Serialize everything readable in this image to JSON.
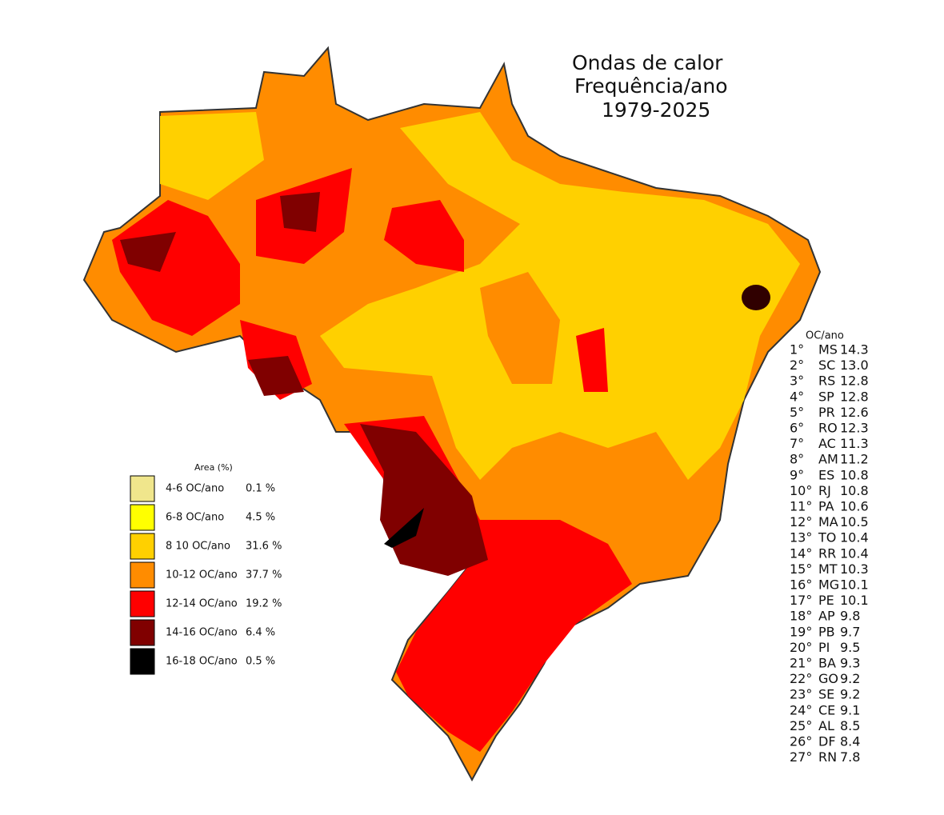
{
  "title": [
    "Ondas de calor",
    "Frequência/ano",
    "1979-2025"
  ],
  "legend": {
    "header": "Area (%)",
    "items": [
      {
        "range": "4-6 OC/ano",
        "area": "0.1 %",
        "color": "#f0e68c"
      },
      {
        "range": "6-8 OC/ano",
        "area": "4.5 %",
        "color": "#ffff00"
      },
      {
        "range": "8 10 OC/ano",
        "area": "31.6 %",
        "color": "#ffd000"
      },
      {
        "range": "10-12 OC/ano",
        "area": "37.7 %",
        "color": "#ff8c00"
      },
      {
        "range": "12-14 OC/ano",
        "area": "19.2 %",
        "color": "#ff0000"
      },
      {
        "range": "14-16 OC/ano",
        "area": "6.4 %",
        "color": "#800000"
      },
      {
        "range": "16-18 OC/ano",
        "area": "0.5 %",
        "color": "#000000"
      }
    ]
  },
  "ranking": {
    "header": "OC/ano",
    "rows": [
      [
        "1°",
        "MS",
        "14.3"
      ],
      [
        "2°",
        "SC",
        "13.0"
      ],
      [
        "3°",
        "RS",
        "12.8"
      ],
      [
        "4°",
        "SP",
        "12.8"
      ],
      [
        "5°",
        "PR",
        "12.6"
      ],
      [
        "6°",
        "RO",
        "12.3"
      ],
      [
        "7°",
        "AC",
        "11.3"
      ],
      [
        "8°",
        "AM",
        "11.2"
      ],
      [
        "9°",
        "ES",
        "10.8"
      ],
      [
        "10°",
        "RJ",
        "10.8"
      ],
      [
        "11°",
        "PA",
        "10.6"
      ],
      [
        "12°",
        "MA",
        "10.5"
      ],
      [
        "13°",
        "TO",
        "10.4"
      ],
      [
        "14°",
        "RR",
        "10.4"
      ],
      [
        "15°",
        "MT",
        "10.3"
      ],
      [
        "16°",
        "MG",
        "10.1"
      ],
      [
        "17°",
        "PE",
        "10.1"
      ],
      [
        "18°",
        "AP",
        "9.8"
      ],
      [
        "19°",
        "PB",
        "9.7"
      ],
      [
        "20°",
        "PI",
        "9.5"
      ],
      [
        "21°",
        "BA",
        "9.3"
      ],
      [
        "22°",
        "GO",
        "9.2"
      ],
      [
        "23°",
        "SE",
        "9.2"
      ],
      [
        "24°",
        "CE",
        "9.1"
      ],
      [
        "25°",
        "AL",
        "8.5"
      ],
      [
        "26°",
        "DF",
        "8.4"
      ],
      [
        "27°",
        "RN",
        "7.8"
      ]
    ]
  }
}
